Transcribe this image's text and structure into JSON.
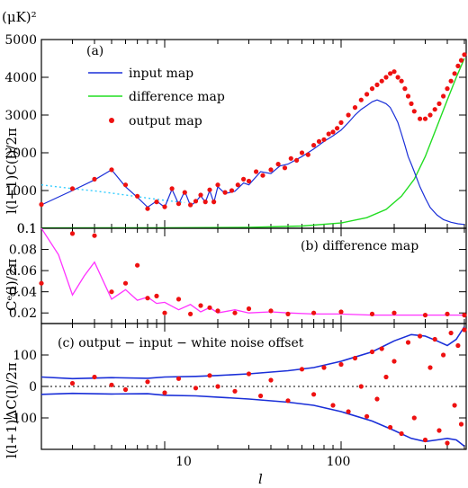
{
  "figure": {
    "top_unit": "(μK)²",
    "x_axis_label": "l",
    "x_tick_labels": [
      "10",
      "100"
    ]
  },
  "chart_data": [
    {
      "type": "line",
      "panel_label": "(a)",
      "ylabel": "l(l+1)C(l)/2π",
      "xscale": "log",
      "xlim": [
        2,
        512
      ],
      "ylim": [
        0.1,
        5000
      ],
      "y_ticks": [
        "0.1",
        "1000",
        "2000",
        "3000",
        "4000",
        "5000"
      ],
      "legend": {
        "placement": "top-left",
        "entries": [
          "input map",
          "difference map",
          "output map"
        ]
      },
      "colors": {
        "input map": "#1a2fd8",
        "difference map": "#22dd22",
        "output map": "#ee1111",
        "low-l fit": "#33ccff"
      },
      "series": [
        {
          "name": "input map",
          "x": [
            2,
            3,
            4,
            5,
            6,
            7,
            8,
            9,
            10,
            11,
            12,
            13,
            14,
            15,
            16,
            17,
            18,
            19,
            20,
            22,
            25,
            28,
            30,
            35,
            40,
            45,
            50,
            60,
            70,
            80,
            90,
            100,
            110,
            120,
            130,
            140,
            150,
            160,
            170,
            180,
            190,
            200,
            210,
            220,
            230,
            240,
            250,
            260,
            280,
            300,
            320,
            350,
            380,
            420,
            460,
            500
          ],
          "y": [
            620,
            1000,
            1280,
            1550,
            1100,
            820,
            560,
            720,
            560,
            1030,
            640,
            980,
            600,
            700,
            860,
            690,
            1000,
            680,
            1100,
            920,
            980,
            1200,
            1150,
            1500,
            1450,
            1650,
            1700,
            1900,
            2100,
            2300,
            2450,
            2600,
            2800,
            3000,
            3150,
            3250,
            3350,
            3400,
            3350,
            3300,
            3200,
            3000,
            2800,
            2500,
            2200,
            1900,
            1700,
            1500,
            1100,
            800,
            550,
            350,
            230,
            160,
            120,
            100
          ]
        },
        {
          "name": "difference map",
          "x": [
            2,
            10,
            30,
            60,
            100,
            140,
            180,
            220,
            260,
            300,
            350,
            400,
            450,
            500
          ],
          "y": [
            10,
            15,
            25,
            60,
            140,
            280,
            500,
            850,
            1300,
            1900,
            2700,
            3400,
            4000,
            4500
          ]
        },
        {
          "name": "output map",
          "x": [
            2,
            3,
            4,
            5,
            6,
            7,
            8,
            9,
            10,
            11,
            12,
            13,
            14,
            15,
            16,
            17,
            18,
            19,
            20,
            22,
            24,
            26,
            28,
            30,
            33,
            36,
            40,
            44,
            48,
            52,
            56,
            60,
            65,
            70,
            75,
            80,
            85,
            90,
            95,
            100,
            110,
            120,
            130,
            140,
            150,
            160,
            170,
            180,
            190,
            200,
            210,
            220,
            230,
            240,
            250,
            260,
            280,
            300,
            320,
            340,
            360,
            380,
            400,
            420,
            440,
            460,
            480,
            500
          ],
          "y": [
            630,
            1050,
            1300,
            1550,
            1150,
            850,
            520,
            700,
            570,
            1050,
            650,
            950,
            620,
            720,
            880,
            700,
            1020,
            700,
            1150,
            950,
            1000,
            1150,
            1300,
            1250,
            1500,
            1400,
            1550,
            1700,
            1600,
            1850,
            1800,
            2000,
            1950,
            2200,
            2300,
            2350,
            2500,
            2550,
            2650,
            2800,
            3000,
            3200,
            3400,
            3550,
            3700,
            3800,
            3900,
            4000,
            4100,
            4150,
            4000,
            3900,
            3700,
            3500,
            3300,
            3100,
            2900,
            2900,
            3000,
            3150,
            3300,
            3500,
            3700,
            3900,
            4100,
            4300,
            4450,
            4600
          ]
        },
        {
          "name": "low-l fit",
          "x": [
            2,
            3,
            4,
            5,
            6,
            8,
            10,
            13
          ],
          "y": [
            1150,
            1050,
            990,
            930,
            880,
            800,
            740,
            680
          ]
        }
      ]
    },
    {
      "type": "line",
      "panel_label": "(b) difference map",
      "ylabel": "Cᵉ(l)/2π",
      "xscale": "log",
      "xlim": [
        2,
        512
      ],
      "ylim": [
        0.01,
        0.1
      ],
      "y_ticks": [
        "0.02",
        "0.04",
        "0.06",
        "0.08",
        "0.1"
      ],
      "colors": {
        "fit": "#ff33ff",
        "points": "#ee1111"
      },
      "series": [
        {
          "x": [
            2,
            2.5,
            3,
            3.5,
            4,
            5,
            6,
            7,
            8,
            9,
            10,
            12,
            14,
            16,
            18,
            20,
            25,
            30,
            40,
            50,
            70,
            100,
            150,
            200,
            300,
            400,
            500
          ],
          "y": [
            0.1,
            0.075,
            0.037,
            0.055,
            0.068,
            0.033,
            0.042,
            0.032,
            0.035,
            0.029,
            0.03,
            0.023,
            0.028,
            0.021,
            0.025,
            0.02,
            0.023,
            0.02,
            0.021,
            0.02,
            0.019,
            0.019,
            0.018,
            0.018,
            0.018,
            0.018,
            0.018
          ]
        },
        {
          "x": [
            2,
            3,
            4,
            5,
            6,
            7,
            8,
            9,
            10,
            12,
            14,
            16,
            18,
            20,
            25,
            30,
            40,
            50,
            70,
            100,
            150,
            200,
            300,
            400,
            500
          ],
          "y": [
            0.048,
            0.095,
            0.093,
            0.04,
            0.048,
            0.065,
            0.034,
            0.036,
            0.02,
            0.033,
            0.019,
            0.027,
            0.025,
            0.022,
            0.02,
            0.024,
            0.022,
            0.019,
            0.02,
            0.021,
            0.019,
            0.02,
            0.018,
            0.019,
            0.018
          ]
        }
      ]
    },
    {
      "type": "scatter",
      "panel_label": "(c) output − input − white noise offset",
      "ylabel": "l(l+1)ΔC(l)/2π",
      "xscale": "log",
      "xlim": [
        2,
        512
      ],
      "ylim": [
        -200,
        200
      ],
      "y_ticks": [
        "−100",
        "0",
        "100"
      ],
      "colors": {
        "envelope": "#1a2fd8",
        "points": "#ee1111",
        "mean": "#000000"
      },
      "series": [
        {
          "name": "upper envelope",
          "x": [
            2,
            3,
            5,
            8,
            10,
            15,
            20,
            30,
            50,
            70,
            100,
            150,
            200,
            250,
            300,
            350,
            400,
            450,
            500
          ],
          "y": [
            30,
            25,
            28,
            26,
            30,
            32,
            35,
            40,
            50,
            60,
            80,
            110,
            145,
            165,
            160,
            145,
            130,
            150,
            190
          ]
        },
        {
          "name": "lower envelope",
          "x": [
            2,
            3,
            5,
            8,
            10,
            15,
            20,
            30,
            50,
            70,
            100,
            150,
            200,
            250,
            300,
            350,
            400,
            450,
            500
          ],
          "y": [
            -25,
            -22,
            -24,
            -23,
            -28,
            -30,
            -34,
            -40,
            -50,
            -60,
            -80,
            -110,
            -140,
            -165,
            -175,
            -170,
            -165,
            -170,
            -190
          ]
        },
        {
          "name": "points",
          "x": [
            3,
            4,
            5,
            6,
            8,
            10,
            12,
            15,
            18,
            20,
            25,
            30,
            35,
            40,
            50,
            60,
            70,
            80,
            90,
            100,
            110,
            120,
            130,
            140,
            150,
            160,
            170,
            180,
            190,
            200,
            220,
            240,
            260,
            280,
            300,
            320,
            340,
            360,
            380,
            400,
            420,
            440,
            460,
            480,
            500
          ],
          "y": [
            10,
            30,
            5,
            -10,
            15,
            -20,
            25,
            -5,
            35,
            0,
            -15,
            40,
            -30,
            20,
            -45,
            55,
            -25,
            60,
            -60,
            70,
            -80,
            90,
            0,
            -95,
            110,
            -40,
            120,
            30,
            -130,
            80,
            -150,
            140,
            -100,
            160,
            -170,
            60,
            150,
            -140,
            100,
            -180,
            170,
            -60,
            130,
            -120,
            180
          ]
        }
      ]
    }
  ]
}
